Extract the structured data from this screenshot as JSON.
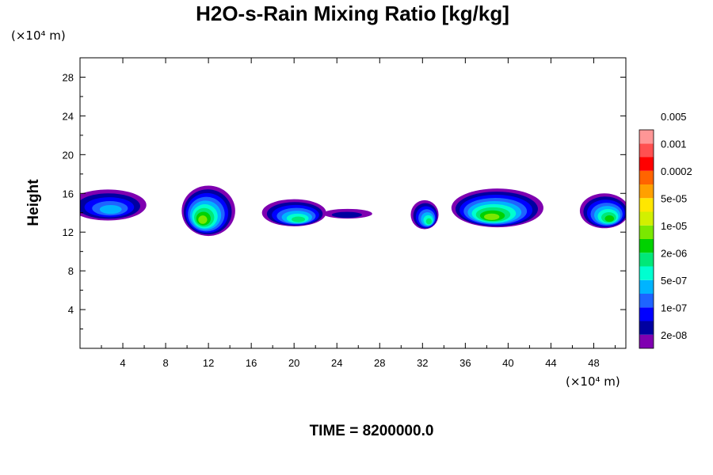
{
  "chart_data": {
    "type": "heatmap",
    "title": "H2O-s-Rain Mixing Ratio [kg/kg]",
    "xlabel": "",
    "ylabel": "Height",
    "x_unit": "(×10⁴ m)",
    "y_unit": "(×10⁴ m)",
    "xlim": [
      0,
      51
    ],
    "ylim": [
      0,
      30
    ],
    "x_ticks": [
      4,
      8,
      12,
      16,
      20,
      24,
      28,
      32,
      36,
      40,
      44,
      48
    ],
    "y_ticks": [
      4,
      8,
      12,
      16,
      20,
      24,
      28
    ],
    "grid": false,
    "colorbar": {
      "placement": "right",
      "levels": [
        "2e-08",
        "1e-07",
        "5e-07",
        "2e-06",
        "1e-05",
        "5e-05",
        "0.0002",
        "0.001",
        "0.005"
      ],
      "colors": [
        "#7f00b0",
        "#0000a0",
        "#0000ff",
        "#1e64ff",
        "#00b4ff",
        "#00ffd0",
        "#00e878",
        "#00d200",
        "#7ae800",
        "#d2f000",
        "#ffe600",
        "#ffa000",
        "#ff6400",
        "#ff0000",
        "#ff5050",
        "#ff9696"
      ]
    },
    "features": [
      {
        "cx": 2.6,
        "cy": 14.8,
        "rx": 3.6,
        "ry": 1.6,
        "peak": 5
      },
      {
        "cx": 12.0,
        "cy": 14.2,
        "rx": 2.5,
        "ry": 2.6,
        "peak": 9
      },
      {
        "cx": 20.0,
        "cy": 14.0,
        "rx": 3.0,
        "ry": 1.4,
        "peak": 7
      },
      {
        "cx": 25.0,
        "cy": 13.9,
        "rx": 2.3,
        "ry": 0.5,
        "peak": 2
      },
      {
        "cx": 32.2,
        "cy": 13.8,
        "rx": 1.3,
        "ry": 1.5,
        "peak": 7
      },
      {
        "cx": 39.0,
        "cy": 14.5,
        "rx": 4.3,
        "ry": 2.0,
        "peak": 9
      },
      {
        "cx": 49.0,
        "cy": 14.2,
        "rx": 2.3,
        "ry": 1.8,
        "peak": 8
      }
    ]
  },
  "footer": {
    "time_label": "TIME = 8200000.0"
  }
}
